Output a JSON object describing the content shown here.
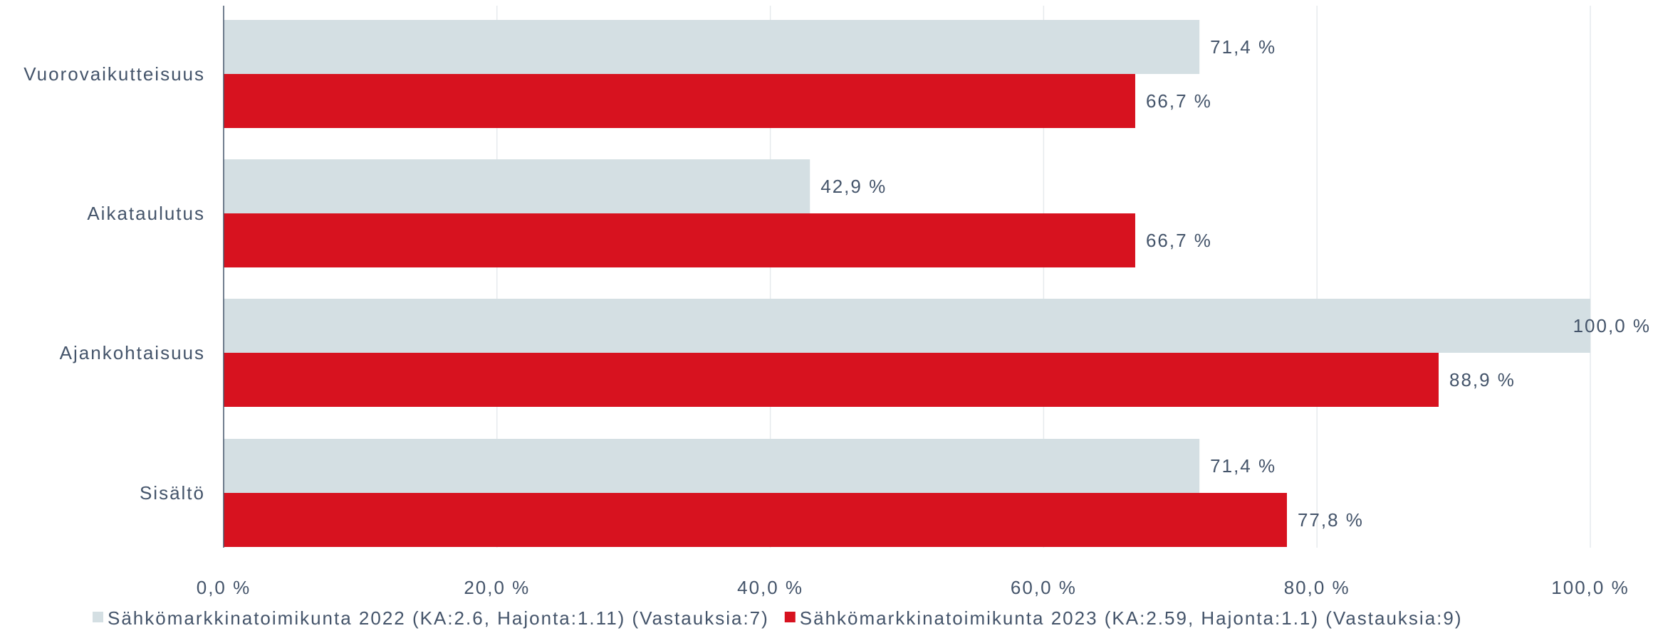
{
  "chart_data": {
    "type": "bar",
    "orientation": "horizontal",
    "categories": [
      "Vuorovaikutteisuus",
      "Aikataulutus",
      "Ajankohtaisuus",
      "Sisältö"
    ],
    "series": [
      {
        "name": "Sähkömarkkinatoimikunta 2022 (KA:2.6, Hajonta:1.11) (Vastauksia:7)",
        "color": "#d4dfe3",
        "values": [
          71.4,
          42.9,
          100.0,
          71.4
        ],
        "labels": [
          "71,4 %",
          "42,9 %",
          "100,0 %",
          "71,4 %"
        ]
      },
      {
        "name": "Sähkömarkkinatoimikunta 2023 (KA:2.59, Hajonta:1.1) (Vastauksia:9)",
        "color": "#d7121f",
        "values": [
          66.7,
          66.7,
          88.9,
          77.8
        ],
        "labels": [
          "66,7 %",
          "66,7 %",
          "88,9 %",
          "77,8 %"
        ]
      }
    ],
    "xlim": [
      0,
      100
    ],
    "xticks": [
      0,
      20,
      40,
      60,
      80,
      100
    ],
    "xtick_labels": [
      "0,0 %",
      "20,0 %",
      "40,0 %",
      "60,0 %",
      "80,0 %",
      "100,0 %"
    ],
    "grid": true,
    "legend_position": "bottom",
    "title": "",
    "xlabel": "",
    "ylabel": ""
  }
}
